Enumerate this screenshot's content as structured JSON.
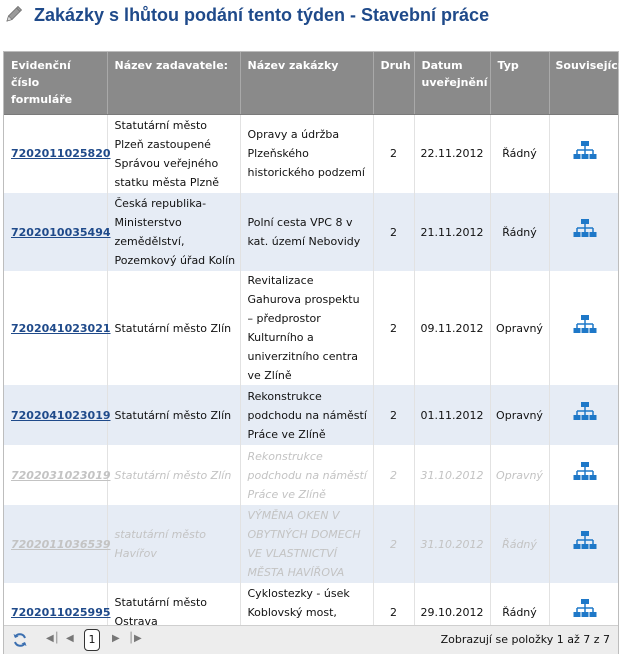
{
  "header": {
    "title": "Zakázky s lhůtou podání tento týden - Stavební práce",
    "icon": "pencil-icon"
  },
  "table": {
    "columns": [
      "Evidenční číslo formuláře",
      "Název zadavatele:",
      "Název zakázky",
      "Druh",
      "Datum uveřejnění",
      "Typ",
      "Související"
    ],
    "rows": [
      {
        "id": "7202011025820",
        "zadavatel": "Statutární město Plzeň zastoupené Správou veřejného statku města Plzně",
        "nazev": "Opravy a údržba Plzeňského historického podzemí",
        "druh": "2",
        "datum": "22.11.2012",
        "typ": "Řádný"
      },
      {
        "id": "7202010035494",
        "zadavatel": "Česká republika-Ministerstvo zemědělství, Pozemkový úřad Kolín",
        "nazev": "Polní cesta VPC 8 v kat. území Nebovidy",
        "druh": "2",
        "datum": "21.11.2012",
        "typ": "Řádný"
      },
      {
        "id": "7202041023021",
        "zadavatel": "Statutární město Zlín",
        "nazev": "Revitalizace Gahurova prospektu – předprostor Kulturního a univerzitního centra ve Zlíně",
        "druh": "2",
        "datum": "09.11.2012",
        "typ": "Opravný"
      },
      {
        "id": "7202041023019",
        "zadavatel": "Statutární město Zlín",
        "nazev": "Rekonstrukce podchodu na náměstí Práce ve Zlíně",
        "druh": "2",
        "datum": "01.11.2012",
        "typ": "Opravný"
      },
      {
        "id": "7202031023019",
        "zadavatel": "Statutární město Zlín",
        "nazev": "Rekonstrukce podchodu na náměstí Práce ve Zlíně",
        "druh": "2",
        "datum": "31.10.2012",
        "typ": "Opravný"
      },
      {
        "id": "7202011036539",
        "zadavatel": "statutární město Havířov",
        "nazev": "VÝMĚNA OKEN V OBYTNÝCH DOMECH VE VLASTNICTVÍ MĚSTA HAVÍŘOVA",
        "druh": "2",
        "datum": "31.10.2012",
        "typ": "Řádný"
      },
      {
        "id": "7202011025995",
        "zadavatel": "Statutární město Ostrava",
        "nazev": "Cyklostezky - úsek Koblovský most, lávka na Kamenec",
        "druh": "2",
        "datum": "29.10.2012",
        "typ": "Řádný"
      }
    ],
    "related_icon": "org-chart-icon"
  },
  "pager": {
    "current_page": "1",
    "info": "Zobrazují se položky 1 až 7 z 7"
  },
  "colors": {
    "title": "#1f4a8a",
    "header_bg": "#8a8a8a",
    "alt_row": "#e6ecf5",
    "link": "#1f4a8a",
    "icon_blue": "#1e78c8",
    "dim_text": "#c3c3c3"
  }
}
